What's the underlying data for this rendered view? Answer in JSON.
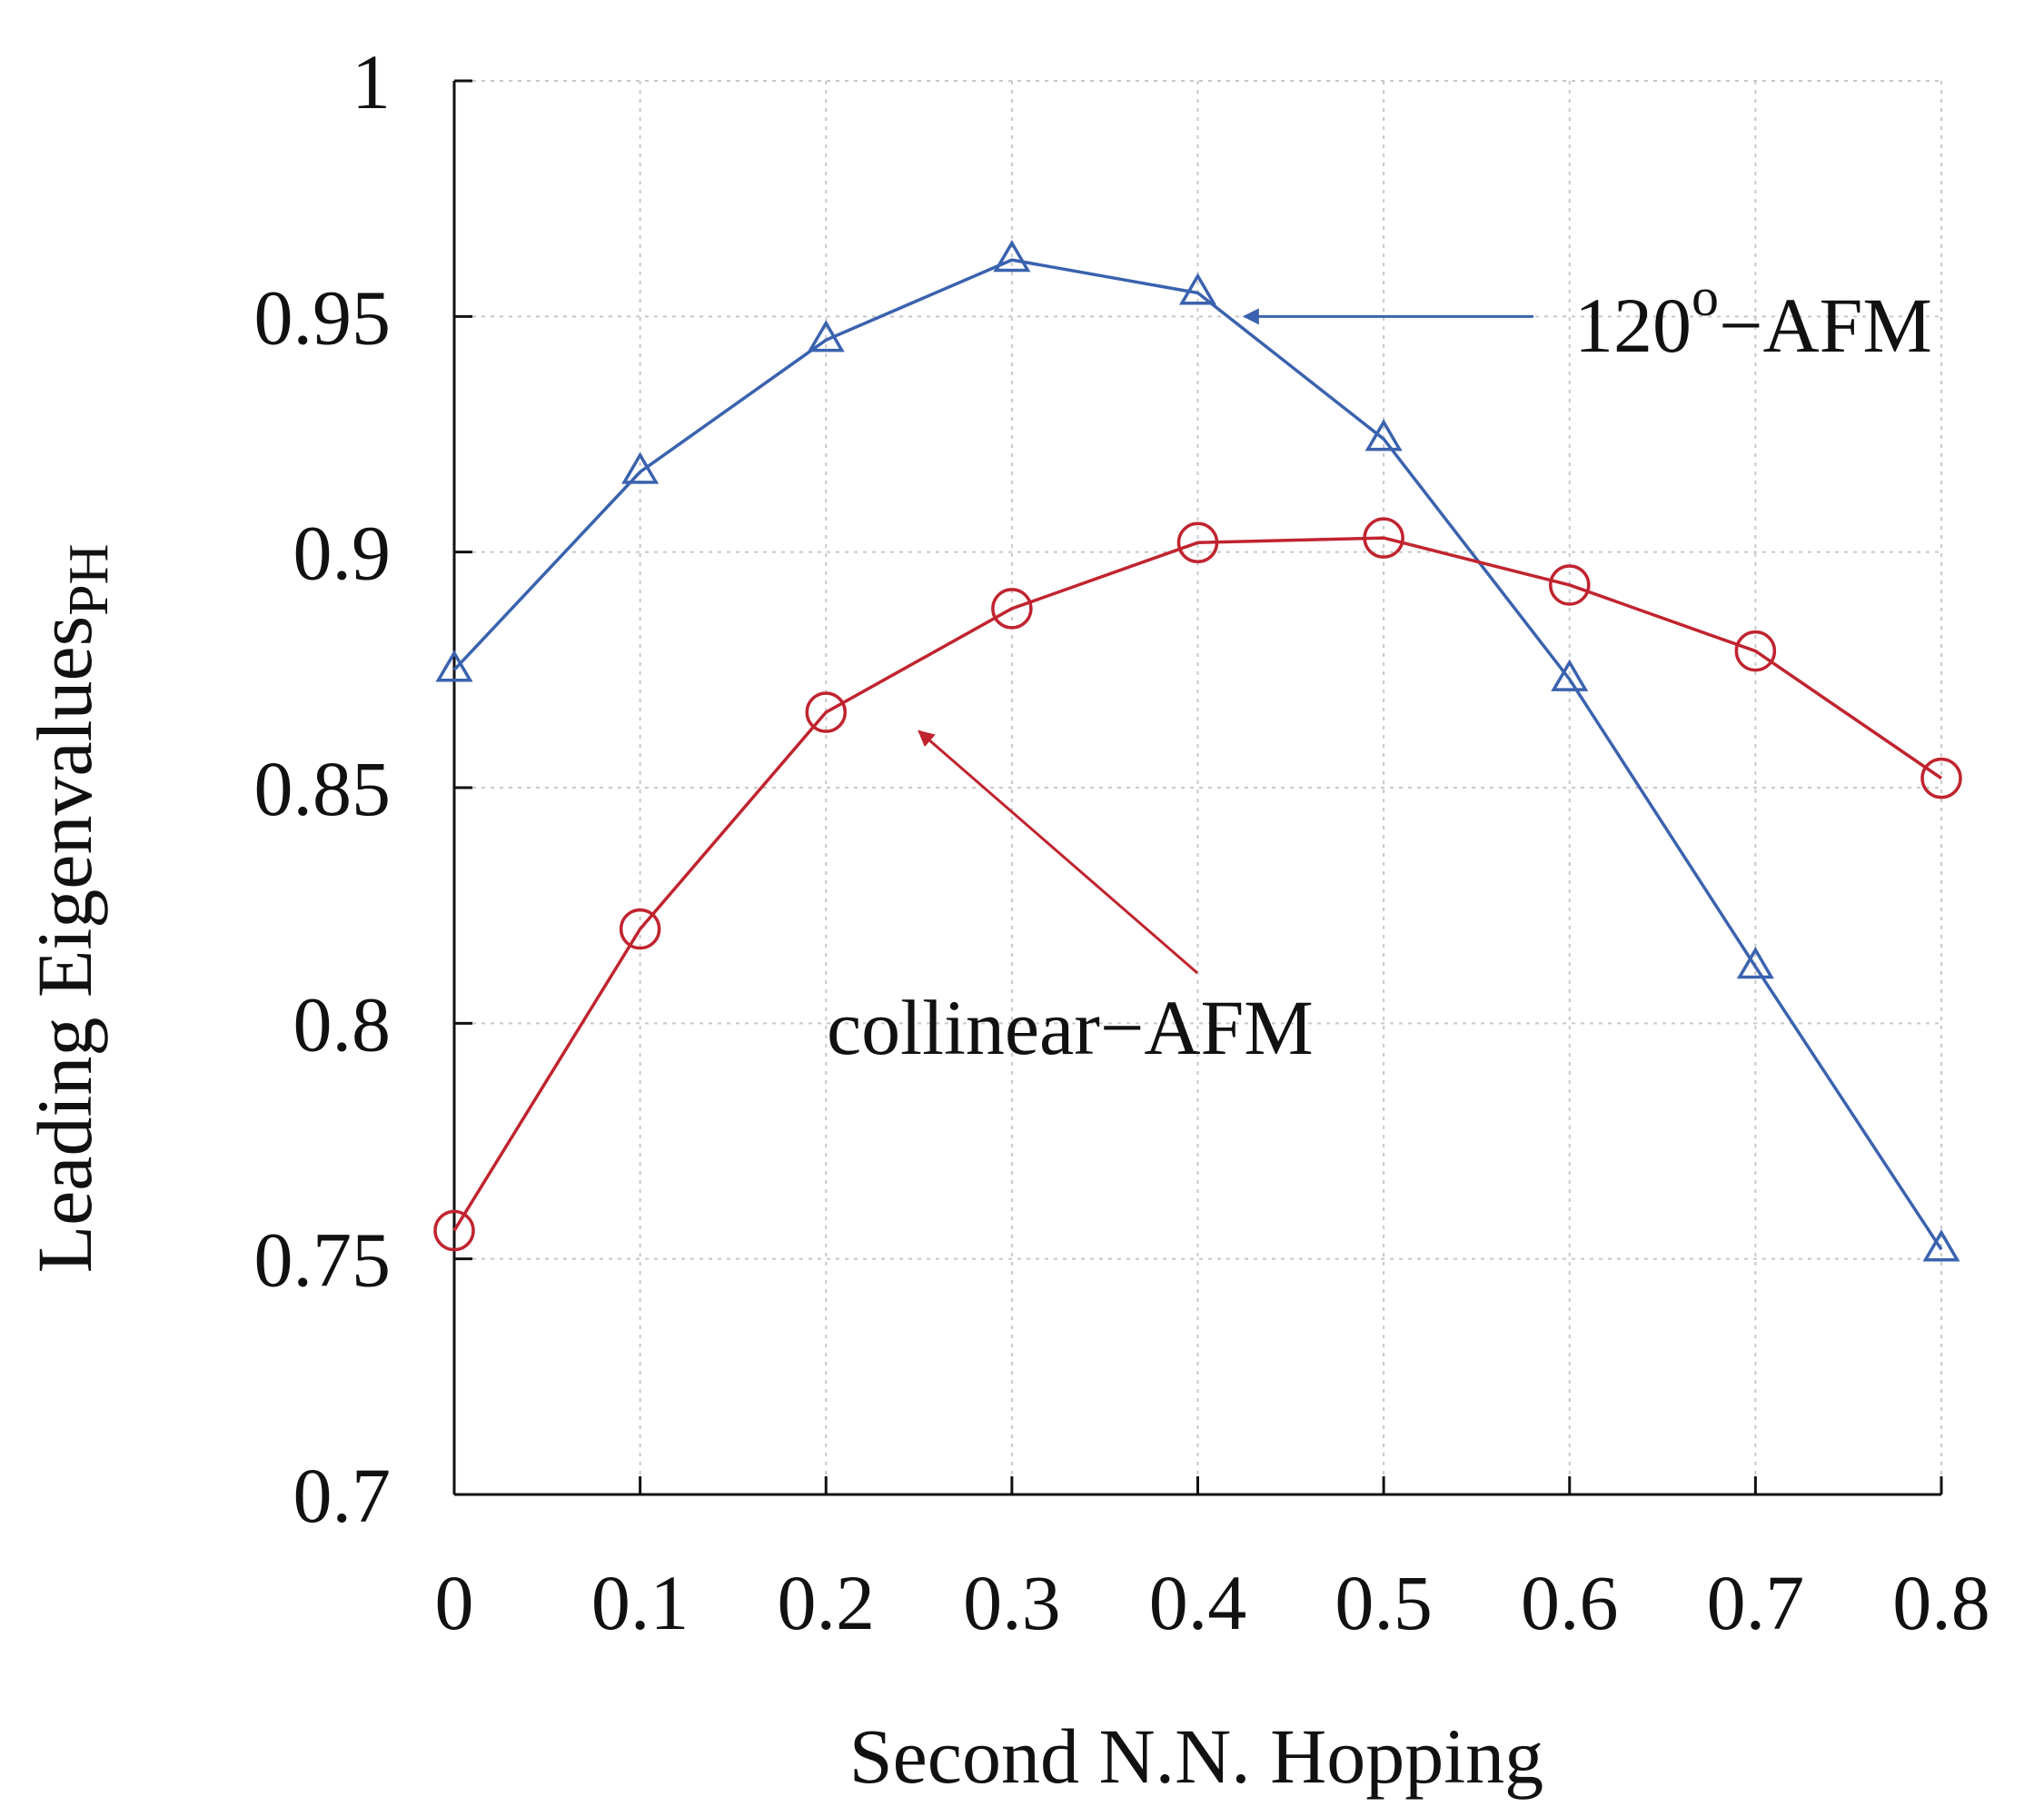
{
  "chart_data": {
    "type": "line",
    "title": "",
    "xlabel": "Second N.N. Hopping",
    "ylabel": "Leading Eigenvalues",
    "ylabel_sub": "PH",
    "x": [
      0,
      0.1,
      0.2,
      0.3,
      0.4,
      0.5,
      0.6,
      0.7,
      0.8
    ],
    "xlim": [
      0,
      0.8
    ],
    "ylim": [
      0.7,
      1.0
    ],
    "xticks": [
      "0",
      "0.1",
      "0.2",
      "0.3",
      "0.4",
      "0.5",
      "0.6",
      "0.7",
      "0.8"
    ],
    "yticks": [
      "0.7",
      "0.75",
      "0.8",
      "0.85",
      "0.9",
      "0.95",
      "1"
    ],
    "ytick_values": [
      0.7,
      0.75,
      0.8,
      0.85,
      0.9,
      0.95,
      1.0
    ],
    "grid": true,
    "series": [
      {
        "name": "120°-AFM",
        "color": "#3a62ae",
        "marker": "triangle",
        "values": [
          0.875,
          0.917,
          0.945,
          0.962,
          0.955,
          0.924,
          0.873,
          0.812,
          0.752
        ]
      },
      {
        "name": "collinear-AFM",
        "color": "#c0242f",
        "marker": "circle",
        "values": [
          0.756,
          0.82,
          0.866,
          0.888,
          0.902,
          0.903,
          0.893,
          0.879,
          0.852
        ]
      }
    ],
    "annotations": [
      {
        "label_main": "120",
        "label_sup": "o",
        "label_rest": "−AFM",
        "series": "120°-AFM",
        "color": "#3a62ae",
        "arrow_tip": [
          0.425,
          0.95
        ]
      },
      {
        "label": "collinear−AFM",
        "series": "collinear-AFM",
        "color": "#c0242f",
        "arrow_tip": [
          0.25,
          0.862
        ]
      }
    ]
  }
}
